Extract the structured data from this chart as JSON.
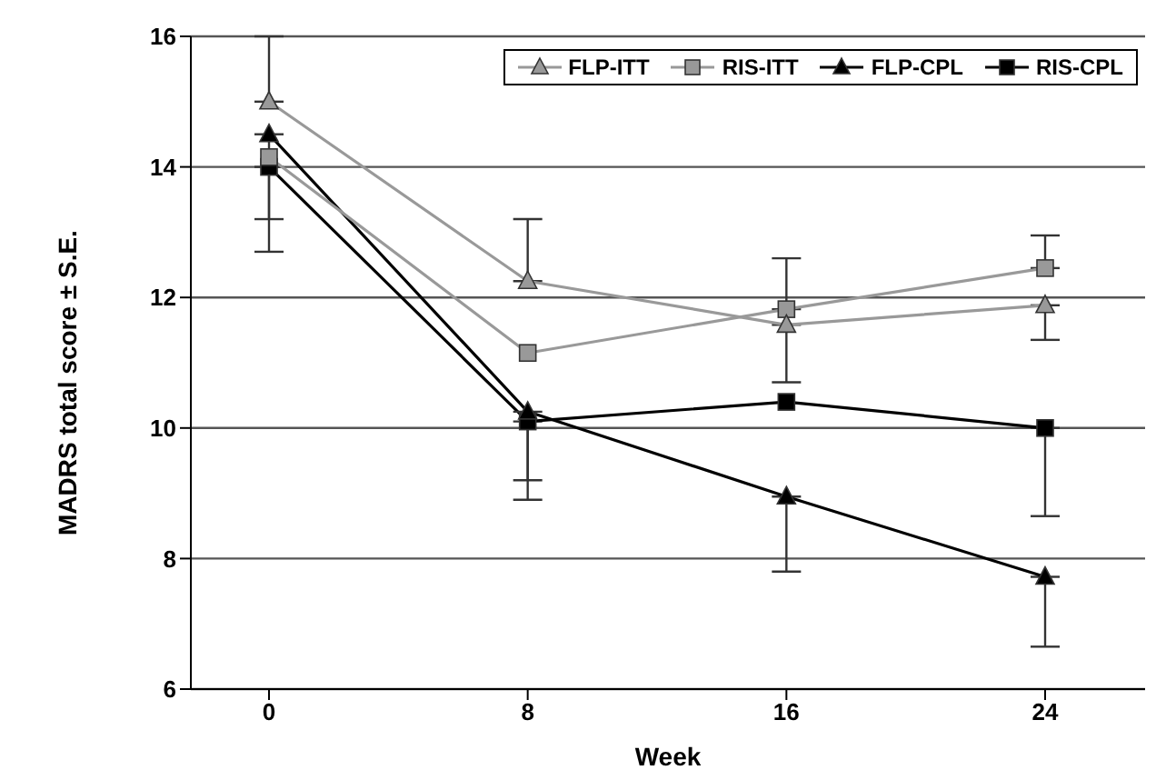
{
  "chart_data": {
    "type": "line",
    "xlabel": "Week",
    "ylabel": "MADRS total score ± S.E.",
    "categories": [
      "0",
      "8",
      "16",
      "24"
    ],
    "series": [
      {
        "name": "FLP-ITT",
        "color": "#999999",
        "marker": "triangle",
        "values": [
          15.0,
          12.25,
          11.58,
          11.88
        ],
        "errors": [
          [
            15.0,
            16.0
          ],
          [
            12.25,
            13.2
          ],
          [
            10.7,
            11.58
          ],
          [
            11.35,
            11.88
          ]
        ]
      },
      {
        "name": "RIS-ITT",
        "color": "#999999",
        "marker": "square",
        "values": [
          14.15,
          11.15,
          11.82,
          12.45
        ],
        "errors": [
          null,
          null,
          [
            11.82,
            12.6
          ],
          [
            12.45,
            12.95
          ]
        ]
      },
      {
        "name": "FLP-CPL",
        "color": "#000000",
        "marker": "triangle",
        "values": [
          14.5,
          10.25,
          8.95,
          7.72
        ],
        "errors": [
          [
            13.2,
            14.5
          ],
          [
            9.2,
            10.25
          ],
          [
            7.8,
            8.95
          ],
          [
            6.65,
            7.72
          ]
        ]
      },
      {
        "name": "RIS-CPL",
        "color": "#000000",
        "marker": "square",
        "values": [
          14.0,
          10.1,
          10.4,
          10.0
        ],
        "errors": [
          [
            12.7,
            14.0
          ],
          [
            8.9,
            10.1
          ],
          null,
          [
            8.65,
            10.0
          ]
        ]
      }
    ],
    "ylim": [
      6,
      16
    ],
    "yticks": [
      6,
      8,
      10,
      12,
      14,
      16
    ],
    "grid": "y",
    "legend": "top right",
    "line_style": "solid"
  }
}
